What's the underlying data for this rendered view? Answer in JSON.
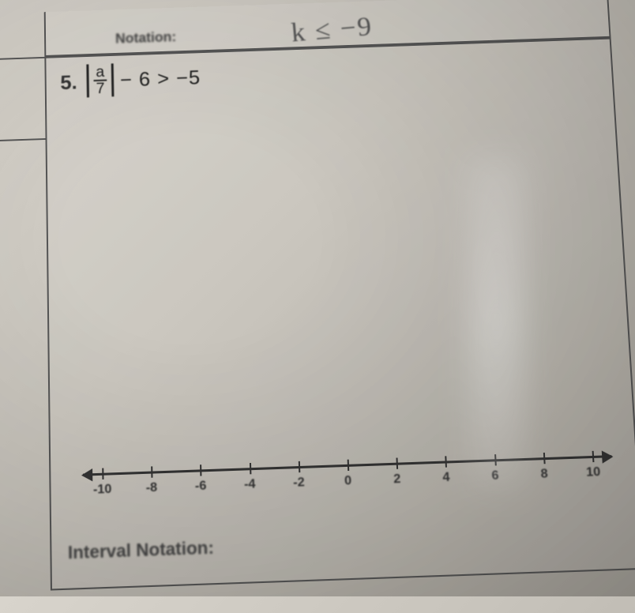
{
  "prev": {
    "label_fragment": "Notation:",
    "handwritten": "k ≤ −9"
  },
  "problem": {
    "number": "5.",
    "frac_num": "a",
    "frac_den": "7",
    "rest": "− 6 > −5"
  },
  "numberline": {
    "min": -10,
    "max": 10,
    "step": 2,
    "ticks": [
      -10,
      -8,
      -6,
      -4,
      -2,
      0,
      2,
      4,
      6,
      8,
      10
    ],
    "tick_color": "#333",
    "line_color": "#333"
  },
  "interval_label": "Interval Notation:",
  "colors": {
    "border": "#555",
    "text": "#333",
    "bg_tint": "#c8c4bc"
  }
}
